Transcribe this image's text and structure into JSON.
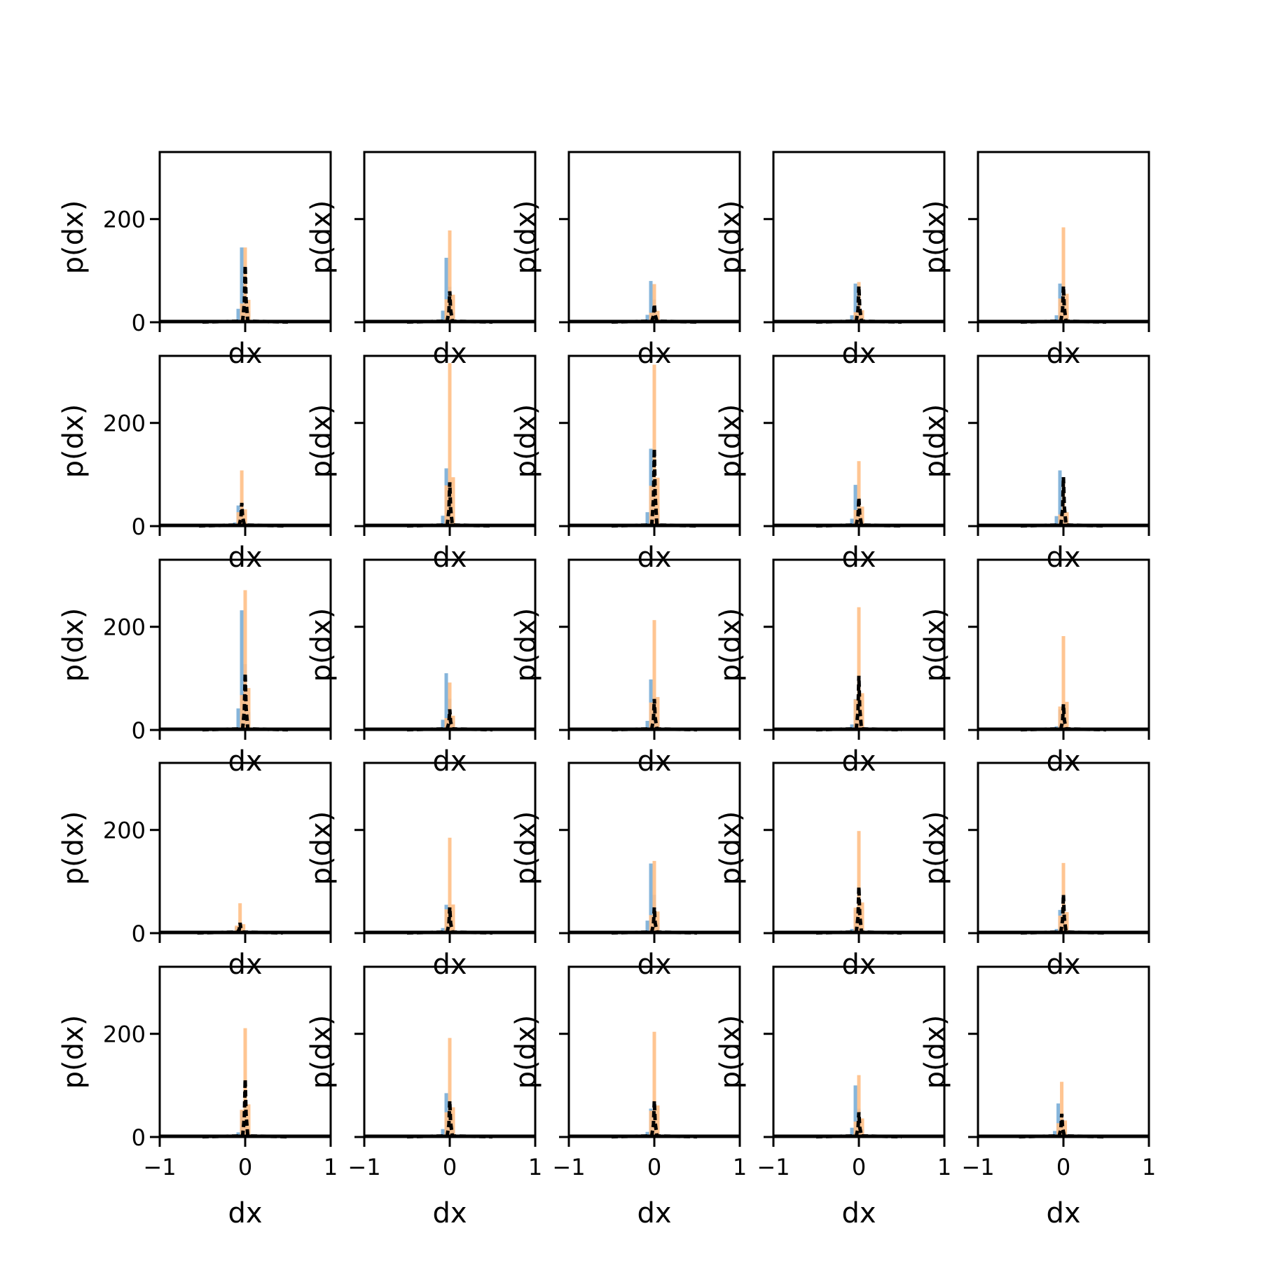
{
  "chart_data": {
    "type": "histogram-grid",
    "rows": 5,
    "cols": 5,
    "xlabel": "dx",
    "ylabel": "p(dx)",
    "xlim": [
      -1,
      1
    ],
    "ylim": [
      0,
      330
    ],
    "xticks": [
      -1,
      0,
      1
    ],
    "xtick_labels": [
      "−1",
      "0",
      "1"
    ],
    "yticks": [
      0,
      200
    ],
    "ytick_labels": [
      "0",
      "200"
    ],
    "grid": false,
    "legend": "none",
    "series_colors": {
      "blue_hist": "#7fb1d9",
      "orange_hist": "#ffbf86",
      "black_dashed": "#000000"
    },
    "panels": [
      {
        "blue_peak": 145,
        "orange_peak": 145,
        "black_peak": 110,
        "offset": 0.0
      },
      {
        "blue_peak": 125,
        "orange_peak": 178,
        "black_peak": 60,
        "offset": 0.0
      },
      {
        "blue_peak": 80,
        "orange_peak": 74,
        "black_peak": 35,
        "offset": 0.0
      },
      {
        "blue_peak": 75,
        "orange_peak": 78,
        "black_peak": 70,
        "offset": 0.0
      },
      {
        "blue_peak": 75,
        "orange_peak": 184,
        "black_peak": 70,
        "offset": 0.0
      },
      {
        "blue_peak": 40,
        "orange_peak": 108,
        "black_peak": 45,
        "offset": -0.04
      },
      {
        "blue_peak": 112,
        "orange_peak": 316,
        "black_peak": 85,
        "offset": 0.0
      },
      {
        "blue_peak": 150,
        "orange_peak": 313,
        "black_peak": 150,
        "offset": 0.0
      },
      {
        "blue_peak": 80,
        "orange_peak": 126,
        "black_peak": 55,
        "offset": 0.0
      },
      {
        "blue_peak": 108,
        "orange_peak": 90,
        "black_peak": 95,
        "offset": 0.0
      },
      {
        "blue_peak": 232,
        "orange_peak": 271,
        "black_peak": 110,
        "offset": 0.0
      },
      {
        "blue_peak": 110,
        "orange_peak": 92,
        "black_peak": 40,
        "offset": 0.0
      },
      {
        "blue_peak": 98,
        "orange_peak": 213,
        "black_peak": 60,
        "offset": 0.0
      },
      {
        "blue_peak": 60,
        "orange_peak": 238,
        "black_peak": 105,
        "offset": 0.0
      },
      {
        "blue_peak": 40,
        "orange_peak": 182,
        "black_peak": 50,
        "offset": 0.0
      },
      {
        "blue_peak": 12,
        "orange_peak": 58,
        "black_peak": 20,
        "offset": -0.06
      },
      {
        "blue_peak": 55,
        "orange_peak": 185,
        "black_peak": 50,
        "offset": 0.0
      },
      {
        "blue_peak": 135,
        "orange_peak": 140,
        "black_peak": 50,
        "offset": 0.0
      },
      {
        "blue_peak": 45,
        "orange_peak": 198,
        "black_peak": 90,
        "offset": 0.0
      },
      {
        "blue_peak": 45,
        "orange_peak": 136,
        "black_peak": 75,
        "offset": 0.0
      },
      {
        "blue_peak": 50,
        "orange_peak": 211,
        "black_peak": 112,
        "offset": 0.0
      },
      {
        "blue_peak": 85,
        "orange_peak": 192,
        "black_peak": 70,
        "offset": 0.0
      },
      {
        "blue_peak": 55,
        "orange_peak": 204,
        "black_peak": 70,
        "offset": 0.0
      },
      {
        "blue_peak": 100,
        "orange_peak": 120,
        "black_peak": 48,
        "offset": 0.0
      },
      {
        "blue_peak": 65,
        "orange_peak": 107,
        "black_peak": 45,
        "offset": -0.02
      }
    ]
  }
}
